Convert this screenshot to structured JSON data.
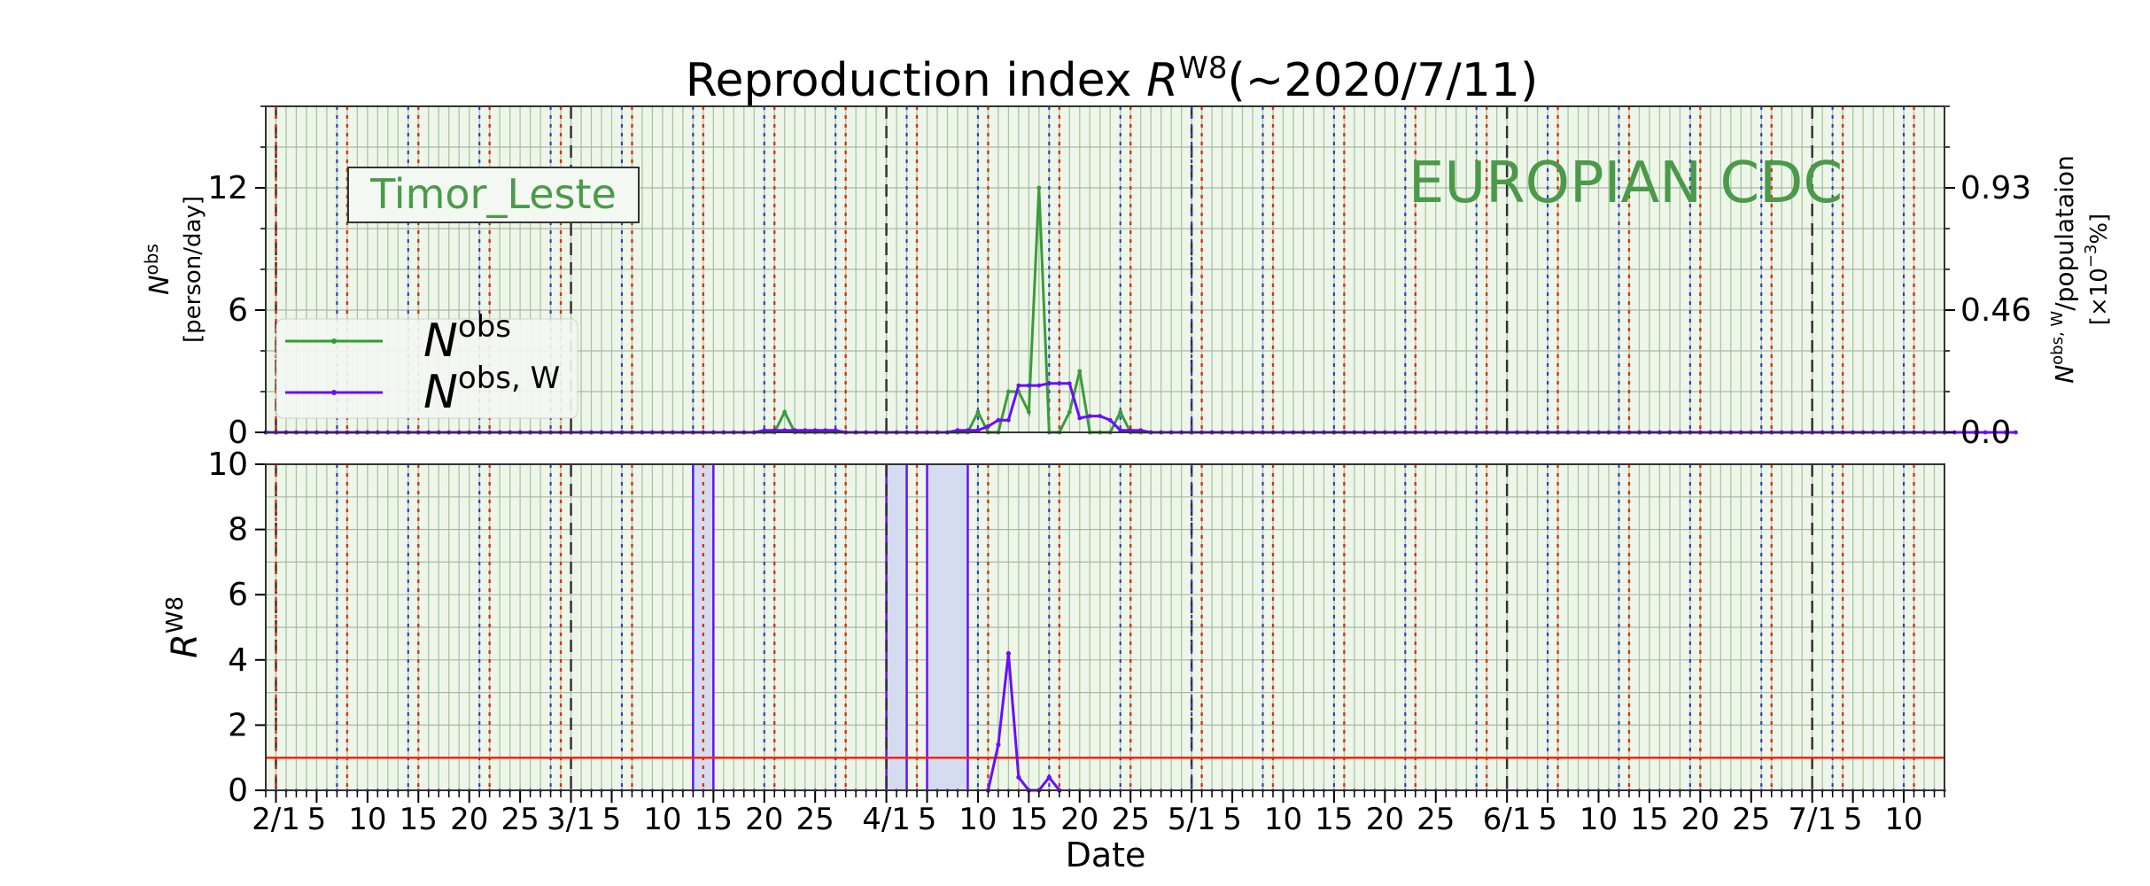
{
  "title": {
    "main": "Reproduction index ",
    "r": "R",
    "sup": "W8",
    "tail": "(~2020/7/11)"
  },
  "region_label": "Timor_Leste",
  "source_label": "EUROPIAN CDC",
  "top_ylabel": {
    "sym": "N",
    "sup": "obs",
    "unit": "[person/day]"
  },
  "right_ylabel": {
    "sym": "N",
    "sup": "obs, W",
    "tail": "/populataion",
    "unit_pre": "[×10",
    "unit_exp": "−3",
    "unit_post": "%]"
  },
  "bottom_ylabel": {
    "sym": "R",
    "sup": "W8"
  },
  "xlabel": "Date",
  "legend": [
    {
      "sym": "N",
      "sup": "obs",
      "color": "#2ca02c"
    },
    {
      "sym": "N",
      "sup": "obs, W",
      "color": "#6a0dff"
    }
  ],
  "colors": {
    "obs": "#3b9b3b",
    "weekly": "#6a0dff",
    "threshold": "#ff2200",
    "bg": "#eef6ea",
    "fill": "#d6dcf0",
    "text_green": "#4a9a4a"
  },
  "chart_data": [
    {
      "type": "line",
      "x_start": "2020-01-31",
      "x_end": "2020-07-14",
      "ylim": [
        0,
        16
      ],
      "yticks": [
        0,
        6,
        12
      ],
      "yticks_right": [
        "0.0",
        "0.46",
        "0.93"
      ],
      "xticks": [
        "2/1",
        "5",
        "10",
        "15",
        "20",
        "25",
        "3/1",
        "5",
        "10",
        "15",
        "20",
        "25",
        "4/1",
        "5",
        "10",
        "15",
        "20",
        "25",
        "5/1",
        "5",
        "10",
        "15",
        "20",
        "25",
        "6/1",
        "5",
        "10",
        "15",
        "20",
        "25",
        "7/1",
        "5",
        "10"
      ],
      "series": [
        {
          "name": "N^obs",
          "color": "#3b9b3b",
          "x_start": "2020-01-31",
          "values": [
            0,
            0,
            0,
            0,
            0,
            0,
            0,
            0,
            0,
            0,
            0,
            0,
            0,
            0,
            0,
            0,
            0,
            0,
            0,
            0,
            0,
            0,
            0,
            0,
            0,
            0,
            0,
            0,
            0,
            0,
            0,
            0,
            0,
            0,
            0,
            0,
            0,
            0,
            0,
            0,
            0,
            0,
            0,
            0,
            0,
            0,
            0,
            0,
            0,
            0,
            0,
            1,
            0,
            0,
            0,
            0,
            0,
            0,
            0,
            0,
            0,
            0,
            0,
            0,
            0,
            0,
            0,
            0,
            0,
            0,
            1,
            0,
            0,
            2,
            2,
            1,
            12,
            0,
            0,
            1,
            3,
            0,
            0,
            0,
            1,
            0,
            0,
            0,
            0,
            0,
            0,
            0,
            0,
            0,
            0,
            0,
            0,
            0,
            0,
            0,
            0,
            0,
            0,
            0,
            0,
            0,
            0,
            0,
            0,
            0,
            0,
            0,
            0,
            0,
            0,
            0,
            0,
            0,
            0,
            0,
            0,
            0,
            0,
            0,
            0,
            0,
            0,
            0,
            0,
            0,
            0,
            0,
            0,
            0,
            0,
            0,
            0,
            0,
            0,
            0,
            0,
            0,
            0,
            0,
            0,
            0,
            0,
            0,
            0,
            0,
            0,
            0,
            0,
            0,
            0,
            0,
            0,
            0,
            0,
            0,
            0,
            0,
            0,
            0,
            0,
            0
          ]
        },
        {
          "name": "N^obs,W",
          "color": "#6a0dff",
          "x_start": "2020-01-31",
          "values": [
            0,
            0,
            0,
            0,
            0,
            0,
            0,
            0,
            0,
            0,
            0,
            0,
            0,
            0,
            0,
            0,
            0,
            0,
            0,
            0,
            0,
            0,
            0,
            0,
            0,
            0,
            0,
            0,
            0,
            0,
            0,
            0,
            0,
            0,
            0,
            0,
            0,
            0,
            0,
            0,
            0,
            0,
            0,
            0,
            0,
            0,
            0,
            0,
            0,
            0.1,
            0.1,
            0.1,
            0.1,
            0.1,
            0.1,
            0.1,
            0.1,
            0,
            0,
            0,
            0,
            0,
            0,
            0,
            0,
            0,
            0,
            0,
            0.1,
            0.1,
            0.1,
            0.3,
            0.6,
            0.6,
            2.3,
            2.3,
            2.3,
            2.4,
            2.4,
            2.4,
            0.7,
            0.8,
            0.8,
            0.6,
            0.1,
            0.1,
            0.1,
            0,
            0,
            0,
            0,
            0,
            0,
            0,
            0,
            0,
            0,
            0,
            0,
            0,
            0,
            0,
            0,
            0,
            0,
            0,
            0,
            0,
            0,
            0,
            0,
            0,
            0,
            0,
            0,
            0,
            0,
            0,
            0,
            0,
            0,
            0,
            0,
            0,
            0,
            0,
            0,
            0,
            0,
            0,
            0,
            0,
            0,
            0,
            0,
            0,
            0,
            0,
            0,
            0,
            0,
            0,
            0,
            0,
            0,
            0,
            0,
            0,
            0,
            0,
            0,
            0,
            0,
            0,
            0,
            0,
            0,
            0,
            0,
            0,
            0,
            0,
            0,
            0,
            0,
            0,
            0,
            0,
            0,
            0,
            0,
            0,
            0
          ]
        }
      ]
    },
    {
      "type": "line",
      "x_start": "2020-01-31",
      "x_end": "2020-07-14",
      "ylim": [
        0,
        10
      ],
      "yticks": [
        0,
        2,
        4,
        6,
        8,
        10
      ],
      "threshold": 1,
      "xticks": [
        "2/1",
        "5",
        "10",
        "15",
        "20",
        "25",
        "3/1",
        "5",
        "10",
        "15",
        "20",
        "25",
        "4/1",
        "5",
        "10",
        "15",
        "20",
        "25",
        "5/1",
        "5",
        "10",
        "15",
        "20",
        "25",
        "6/1",
        "5",
        "10",
        "15",
        "20",
        "25",
        "7/1",
        "5",
        "10"
      ],
      "series": [
        {
          "name": "R^W8",
          "color": "#6a0dff",
          "points": [
            [
              "2020-04-11",
              0
            ],
            [
              "2020-04-12",
              1.4
            ],
            [
              "2020-04-13",
              4.2
            ],
            [
              "2020-04-14",
              0.4
            ],
            [
              "2020-04-15",
              0
            ],
            [
              "2020-04-16",
              0
            ],
            [
              "2020-04-17",
              0.4
            ],
            [
              "2020-04-18",
              0
            ]
          ]
        }
      ],
      "spikes": [
        {
          "from": "2020-03-13",
          "to": "2020-03-15"
        },
        {
          "from": "2020-04-01",
          "to": "2020-04-03"
        },
        {
          "from": "2020-04-05",
          "to": "2020-04-09"
        }
      ]
    }
  ]
}
